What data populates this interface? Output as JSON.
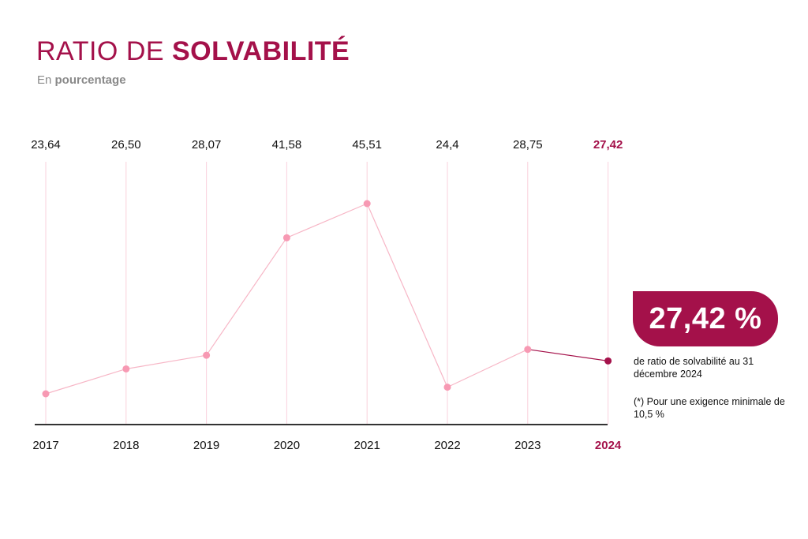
{
  "header": {
    "title_light": "RATIO DE ",
    "title_bold": "SOLVABILITÉ",
    "subtitle_light": "En ",
    "subtitle_bold": "pourcentage"
  },
  "colors": {
    "accent": "#a4114a",
    "line": "#f7b6c6",
    "point": "#f799b3",
    "gridline": "#f9d1dc",
    "axis": "#333333"
  },
  "chart_data": {
    "type": "line",
    "title": "RATIO DE SOLVABILITÉ",
    "subtitle": "En pourcentage",
    "categories": [
      "2017",
      "2018",
      "2019",
      "2020",
      "2021",
      "2022",
      "2023",
      "2024"
    ],
    "value_labels": [
      "23,64",
      "26,50",
      "28,07",
      "41,58",
      "45,51",
      "24,4",
      "28,75",
      "27,42"
    ],
    "series": [
      {
        "values": [
          23.64,
          26.5,
          28.07,
          41.58,
          45.51,
          24.4,
          28.75,
          27.42
        ]
      }
    ],
    "highlight_index": 7,
    "ylim": [
      20,
      50
    ],
    "grid": "vertical",
    "legend": "none"
  },
  "callout": {
    "value": "27,42 %",
    "description": "de ratio de solvabilité au 31 décembre 2024",
    "note": "(*) Pour une exigence minimale de 10,5 %"
  }
}
